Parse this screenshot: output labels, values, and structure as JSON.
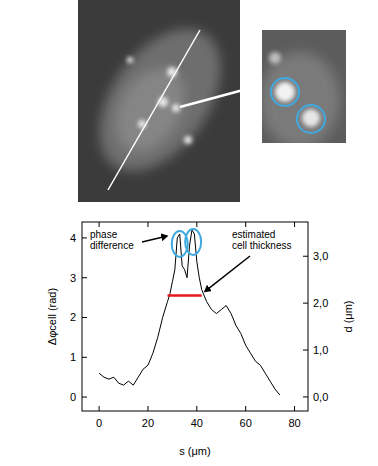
{
  "chart_data": {
    "type": "line",
    "x_label": "s (μm)",
    "y_label": "Δφcell (rad)",
    "y2_label": "d (μm)",
    "x": [
      0,
      2,
      4,
      6,
      8,
      10,
      12,
      14,
      16,
      18,
      20,
      22,
      24,
      26,
      28,
      29,
      30,
      31,
      32,
      33,
      34,
      35,
      36,
      37,
      38,
      39,
      40,
      41,
      42,
      44,
      46,
      48,
      50,
      52,
      54,
      56,
      58,
      60,
      62,
      64,
      66,
      68,
      70,
      72,
      74
    ],
    "values": [
      0.6,
      0.5,
      0.45,
      0.5,
      0.35,
      0.3,
      0.4,
      0.3,
      0.5,
      0.7,
      0.8,
      1.1,
      1.5,
      2.0,
      2.4,
      2.6,
      2.9,
      3.2,
      4.0,
      4.1,
      3.3,
      3.2,
      3.0,
      3.8,
      4.2,
      4.1,
      3.4,
      3.0,
      2.7,
      2.4,
      2.2,
      2.1,
      2.2,
      2.3,
      2.1,
      1.8,
      1.6,
      1.3,
      1.1,
      0.9,
      0.8,
      0.6,
      0.4,
      0.2,
      0.05
    ],
    "color": "#000000",
    "grid": false,
    "xlim": [
      -7,
      85.5
    ],
    "xticks": [
      0,
      20,
      40,
      60,
      80
    ],
    "ylim": [
      -0.35,
      4.4
    ],
    "yticks": [
      0,
      1,
      2,
      3,
      4
    ],
    "y2lim": [
      -0.3,
      3.73
    ],
    "y2ticks": [
      {
        "value": 0,
        "label": "0,0"
      },
      {
        "value": 1,
        "label": "1,0"
      },
      {
        "value": 2,
        "label": "2,0"
      },
      {
        "value": 3,
        "label": "3,0"
      }
    ],
    "reference_line": {
      "x": [
        28,
        42
      ],
      "y": 2.55,
      "color": "#e41a1c"
    },
    "highlights": {
      "x": [
        33,
        38.5
      ],
      "y": [
        3.85,
        3.9
      ],
      "color": "#3fa9e0"
    },
    "annotations": [
      {
        "lines": [
          "phase",
          "difference"
        ],
        "x": 32,
        "y": 4.05
      },
      {
        "lines": [
          "estimated",
          "cell thickness"
        ],
        "x": 42,
        "y": 2.55
      }
    ]
  }
}
